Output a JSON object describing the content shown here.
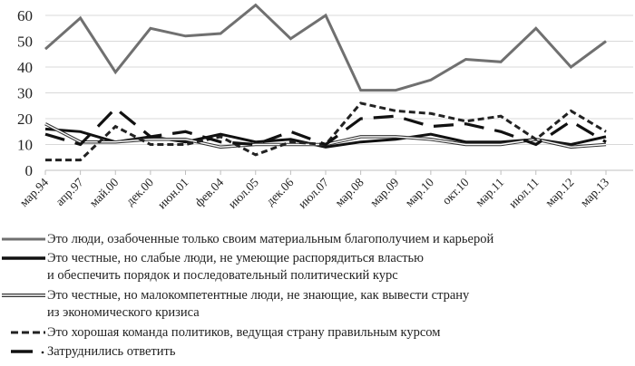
{
  "chart_data": {
    "type": "line",
    "title": "",
    "xlabel": "",
    "ylabel": "",
    "ylim": [
      0,
      60
    ],
    "yticks": [
      0,
      10,
      20,
      30,
      40,
      50,
      60
    ],
    "grid": true,
    "legend_position": "bottom",
    "categories": [
      "мар.94",
      "апр.97",
      "май.00",
      "дек.00",
      "июн.01",
      "фев.04",
      "июл.05",
      "дек.06",
      "июл.07",
      "мар.08",
      "мар.09",
      "мар.10",
      "окт.10",
      "мар.11",
      "июл.11",
      "мар.12",
      "мар.13"
    ],
    "series": [
      {
        "name": "Это люди, озабоченные только своим материальным благополучием и карьерой",
        "style": "solid-gray-thick",
        "color": "#707070",
        "values": [
          47,
          59,
          38,
          55,
          52,
          53,
          64,
          51,
          60,
          31,
          31,
          35,
          43,
          42,
          55,
          40,
          50
        ]
      },
      {
        "name": "Это честные, но слабые люди, не умеющие распорядиться властью и обеспечить порядок и последовательный политический курс",
        "style": "solid-black-thick",
        "color": "#111111",
        "values": [
          16,
          15,
          11,
          13,
          11,
          14,
          11,
          12,
          9,
          11,
          12,
          14,
          11,
          11,
          12,
          10,
          13
        ]
      },
      {
        "name": "Это честные, но малокомпетентные люди, не знающие, как вывести страну из экономического кризиса",
        "style": "double-line",
        "color": "#333333",
        "values": [
          18,
          11,
          11,
          12,
          12,
          9,
          10,
          10,
          10,
          13,
          13,
          12,
          10,
          10,
          12,
          9,
          10
        ]
      },
      {
        "name": "Это хорошая команда политиков, ведущая страну правильным курсом",
        "style": "short-dash",
        "color": "#222222",
        "values": [
          4,
          4,
          17,
          10,
          10,
          13,
          6,
          11,
          10,
          26,
          23,
          22,
          19,
          21,
          12,
          23,
          15
        ]
      },
      {
        "name": "Затруднились ответить",
        "style": "long-dash",
        "color": "#111111",
        "values": [
          14,
          10,
          24,
          13,
          15,
          11,
          10,
          15,
          10,
          20,
          21,
          17,
          18,
          15,
          10,
          19,
          11
        ]
      }
    ]
  },
  "legend": {
    "items": [
      {
        "lines": [
          "Это люди, озабоченные только своим материальным благополучием и карьерой"
        ]
      },
      {
        "lines": [
          "Это честные, но слабые люди, не умеющие распорядиться властью",
          "и обеспечить порядок и последовательный политический курс"
        ]
      },
      {
        "lines": [
          "Это честные, но малокомпетентные люди, не знающие, как вывести страну",
          "из экономического кризиса"
        ]
      },
      {
        "lines": [
          "Это хорошая команда политиков, ведущая страну правильным курсом"
        ]
      },
      {
        "lines": [
          "Затруднились ответить"
        ]
      }
    ]
  },
  "colors": {
    "grid": "#d9d9d9",
    "axis": "#bfbfbf"
  }
}
